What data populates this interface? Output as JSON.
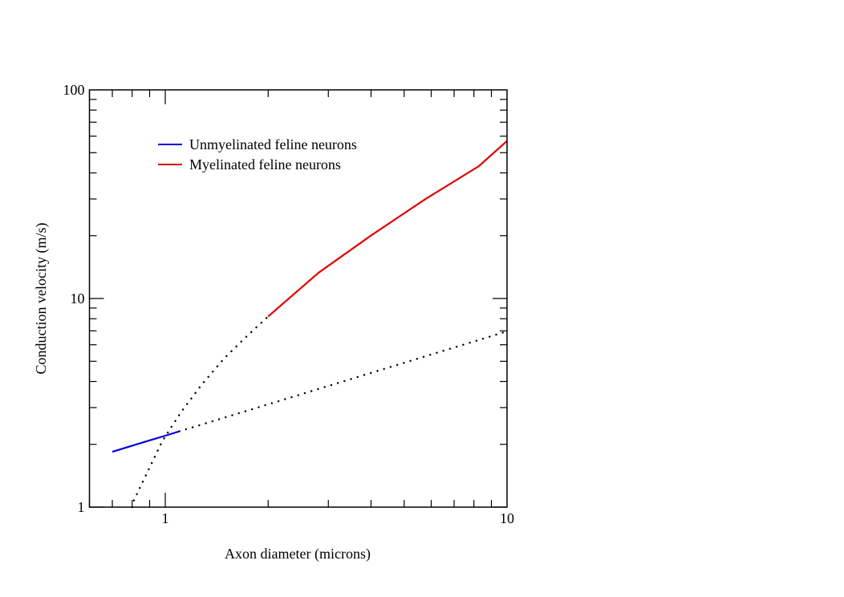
{
  "chart_data": {
    "type": "line",
    "title": "",
    "xlabel": "Axon diameter (microns)",
    "ylabel": "Conduction velocity (m/s)",
    "xscale": "log",
    "yscale": "log",
    "xlim": [
      0.6,
      10
    ],
    "ylim": [
      1,
      100
    ],
    "xticks": [
      {
        "value": 1,
        "label": "1"
      },
      {
        "value": 10,
        "label": "10"
      }
    ],
    "yticks": [
      {
        "value": 1,
        "label": "1"
      },
      {
        "value": 10,
        "label": "10"
      },
      {
        "value": 100,
        "label": "100"
      }
    ],
    "grid": false,
    "legend_position": "top-left",
    "series": [
      {
        "name": "Unmyelinated feline neurons",
        "color": "#0000e0",
        "solid": {
          "x": [
            0.7,
            0.8,
            0.9,
            1.0,
            1.1
          ],
          "y": [
            1.84,
            1.97,
            2.09,
            2.2,
            2.31
          ]
        },
        "dotted": {
          "x": [
            1.1,
            2,
            3,
            4,
            5,
            6,
            7,
            8,
            9,
            10
          ],
          "y": [
            2.31,
            3.11,
            3.81,
            4.4,
            4.92,
            5.39,
            5.82,
            6.22,
            6.6,
            6.96
          ]
        }
      },
      {
        "name": "Myelinated feline neurons",
        "color": "#e00000",
        "solid": {
          "x": [
            2,
            2.81,
            4.01,
            5.76,
            8.27,
            10
          ],
          "y": [
            8.2,
            13.3,
            20.1,
            29.9,
            43.1,
            56.9
          ]
        },
        "dotted": {
          "x": [
            0.8,
            0.81,
            0.98,
            1.11,
            1.28,
            1.49,
            1.71,
            2
          ],
          "y": [
            1.0,
            1.08,
            2.07,
            2.84,
            3.88,
            5.18,
            6.47,
            8.2
          ]
        }
      }
    ]
  }
}
